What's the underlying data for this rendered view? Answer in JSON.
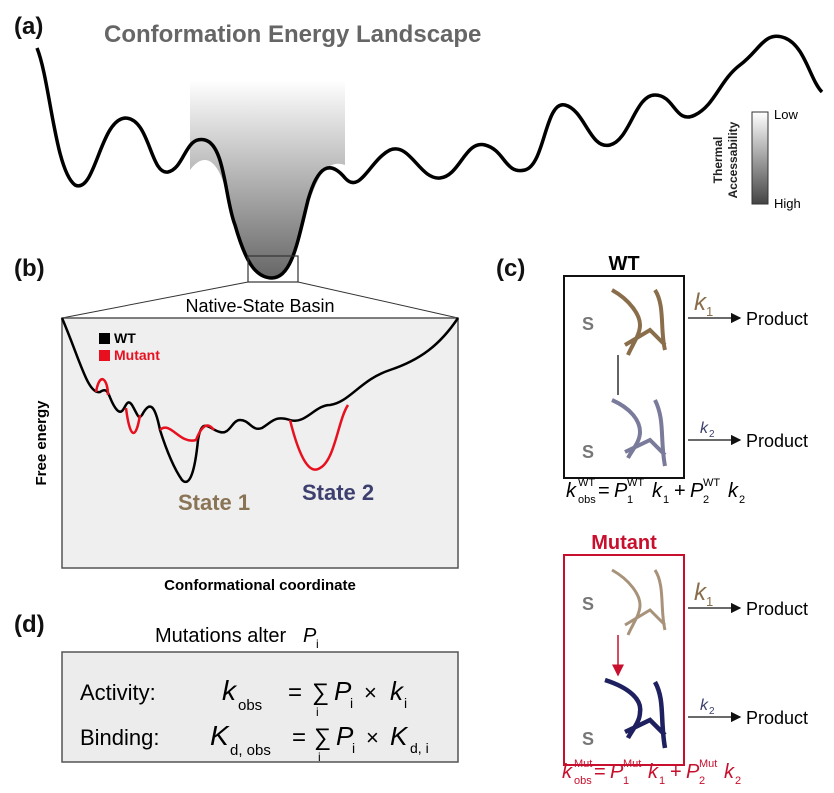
{
  "panel_a": {
    "label": "(a)",
    "title": "Conformation Energy Landscape",
    "colorbar": {
      "title": [
        "Thermal",
        "Accessability"
      ],
      "low": "Low",
      "high": "High"
    }
  },
  "panel_b": {
    "label": "(b)",
    "title": "Native-State Basin",
    "legend": [
      "WT",
      "Mutant"
    ],
    "y_label": "Free energy",
    "x_label": "Conformational coordinate",
    "states": [
      "State 1",
      "State 2"
    ]
  },
  "panel_c": {
    "label": "(c)",
    "wt": {
      "title": "WT",
      "substrate": [
        "S",
        "S"
      ],
      "rates": [
        {
          "symbol": "k",
          "sub": "1",
          "product": "Product"
        },
        {
          "symbol": "k",
          "sub": "2",
          "product": "Product"
        }
      ],
      "equation": [
        "k",
        "obs",
        "WT",
        "=",
        "P",
        "1",
        "WT",
        "k",
        "1",
        "+",
        "P",
        "2",
        "WT",
        "k",
        "2"
      ]
    },
    "mutant": {
      "title": "Mutant",
      "substrate": [
        "S",
        "S"
      ],
      "rates": [
        {
          "symbol": "k",
          "sub": "1",
          "product": "Product"
        },
        {
          "symbol": "k",
          "sub": "2",
          "product": "Product"
        }
      ],
      "equation": [
        "k",
        "obs",
        "Mut",
        "=",
        "P",
        "1",
        "Mut",
        "k",
        "1",
        "+",
        "P",
        "2",
        "Mut",
        "k",
        "2"
      ]
    }
  },
  "panel_d": {
    "label": "(d)",
    "title": [
      "Mutations alter",
      "P",
      "i"
    ],
    "activity": [
      "Activity:",
      "k",
      "obs",
      "=",
      "∑",
      "i",
      "P",
      "i",
      "×",
      "k",
      "i"
    ],
    "binding": [
      "Binding:",
      "K",
      "d, obs",
      "=",
      "∑",
      "i",
      "P",
      "i",
      "×",
      "K",
      "d, i"
    ]
  }
}
